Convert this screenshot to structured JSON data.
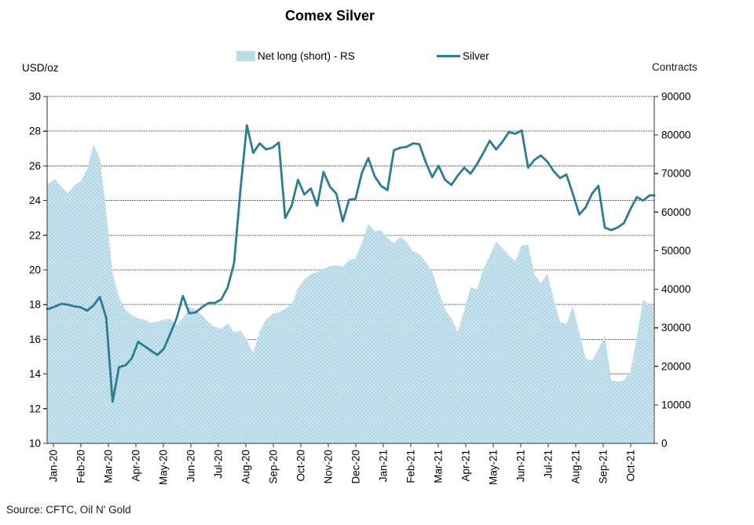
{
  "title": "Comex Silver",
  "legend": {
    "items": [
      {
        "label": "Net long (short) - RS",
        "type": "area"
      },
      {
        "label": "Silver",
        "type": "line"
      }
    ]
  },
  "axes": {
    "left_unit_label": "USD/oz",
    "right_unit_label": "Contracts"
  },
  "source": "Source: CFTC, Oil N' Gold",
  "colors": {
    "line": "#2b7d94",
    "area_fill": "#b5d9e7",
    "area_dot": "#ffffff",
    "grid": "#666666",
    "axis": "#333333",
    "text": "#000000"
  },
  "chart_data": {
    "type": "line+area",
    "title": "Comex Silver",
    "x_unit": "weekly observations, Jan-2020 to Oct-2021",
    "months": [
      "Jan-20",
      "Feb-20",
      "Mar-20",
      "Apr-20",
      "May-20",
      "Jun-20",
      "Jul-20",
      "Aug-20",
      "Sep-20",
      "Oct-20",
      "Nov-20",
      "Dec-20",
      "Jan-21",
      "Feb-21",
      "Mar-21",
      "Apr-21",
      "May-21",
      "Jun-21",
      "Jul-21",
      "Aug-21",
      "Sep-21",
      "Oct-21"
    ],
    "left_axis": {
      "label": "USD/oz",
      "min": 10,
      "max": 30,
      "step": 2,
      "tick_labels": [
        "30",
        "28",
        "26",
        "24",
        "22",
        "20",
        "18",
        "16",
        "14",
        "12",
        "10"
      ]
    },
    "right_axis": {
      "label": "Contracts",
      "min": 0,
      "max": 90000,
      "step": 10000,
      "tick_labels": [
        "90000",
        "80000",
        "70000",
        "60000",
        "50000",
        "40000",
        "30000",
        "20000",
        "10000",
        "0"
      ]
    },
    "grid": true,
    "legend_position": "top",
    "series": [
      {
        "name": "Silver",
        "axis": "left",
        "type": "line",
        "values": [
          17.75,
          17.9,
          18.05,
          18.0,
          17.9,
          17.85,
          17.65,
          17.95,
          18.45,
          17.25,
          12.4,
          14.4,
          14.5,
          14.9,
          15.85,
          15.6,
          15.35,
          15.1,
          15.45,
          16.3,
          17.2,
          18.5,
          17.5,
          17.55,
          17.85,
          18.1,
          18.1,
          18.3,
          19.0,
          20.4,
          24.6,
          28.35,
          26.75,
          27.3,
          26.95,
          27.05,
          27.35,
          23.0,
          23.7,
          25.2,
          24.35,
          24.7,
          23.7,
          25.65,
          24.8,
          24.4,
          22.8,
          24.05,
          24.1,
          25.6,
          26.45,
          25.4,
          24.85,
          24.6,
          26.9,
          27.05,
          27.1,
          27.3,
          27.25,
          26.2,
          25.35,
          26.0,
          25.2,
          24.9,
          25.45,
          25.9,
          25.55,
          26.1,
          26.75,
          27.45,
          26.95,
          27.4,
          27.95,
          27.85,
          28.05,
          25.9,
          26.35,
          26.6,
          26.25,
          25.7,
          25.3,
          25.5,
          24.4,
          23.2,
          23.6,
          24.4,
          24.85,
          22.45,
          22.3,
          22.45,
          22.7,
          23.5,
          24.2,
          24.0,
          24.3
        ]
      },
      {
        "name": "Net long (short) - RS",
        "axis": "right",
        "type": "area",
        "values": [
          67500,
          68600,
          66500,
          64900,
          67000,
          68000,
          71000,
          77500,
          74000,
          60000,
          44000,
          38000,
          34700,
          33300,
          32400,
          32100,
          31300,
          31600,
          32100,
          32300,
          30800,
          32500,
          35400,
          34800,
          33200,
          31500,
          30200,
          29800,
          31200,
          28800,
          29300,
          26800,
          23500,
          29000,
          32200,
          33600,
          33900,
          35000,
          36000,
          40300,
          42500,
          43900,
          44400,
          45300,
          46000,
          46300,
          45800,
          47600,
          48000,
          52000,
          57000,
          55000,
          55300,
          53400,
          52000,
          53600,
          52200,
          49800,
          49100,
          47000,
          44600,
          39500,
          34800,
          32500,
          29000,
          34500,
          40500,
          40000,
          45200,
          48500,
          52400,
          50600,
          48700,
          47200,
          51400,
          51500,
          43800,
          41500,
          44100,
          37500,
          31500,
          31000,
          35600,
          28900,
          22100,
          21400,
          24500,
          28000,
          16300,
          16000,
          16300,
          18700,
          27500,
          37300,
          35800
        ]
      }
    ]
  }
}
